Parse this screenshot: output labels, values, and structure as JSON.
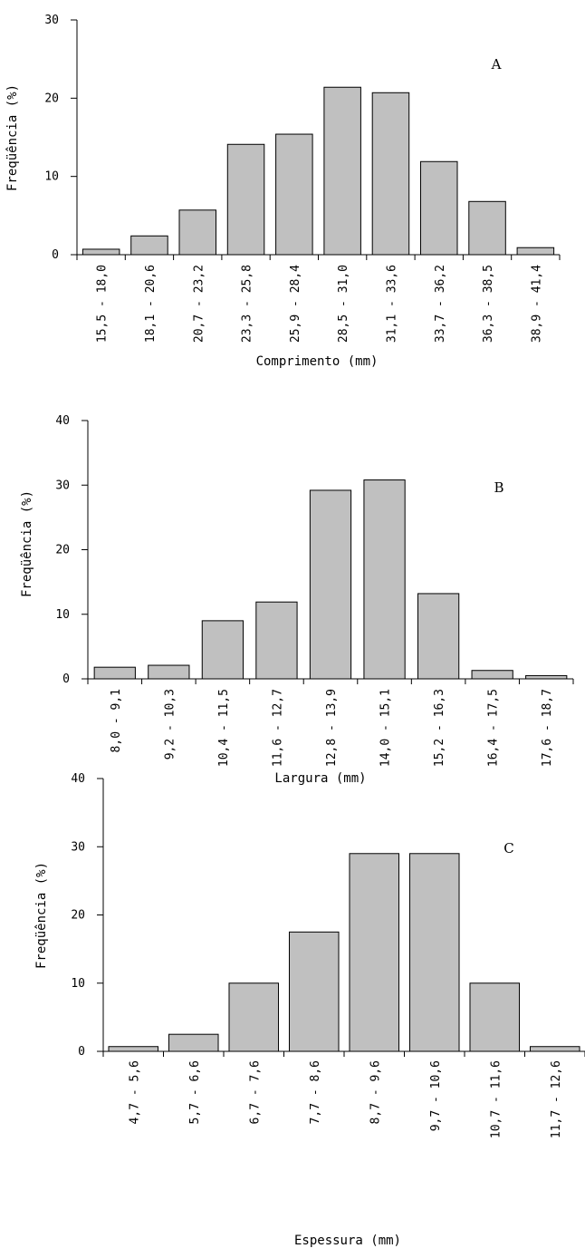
{
  "chart_data": [
    {
      "type": "bar",
      "panel_label": "A",
      "ylabel": "Freqüência (%)",
      "xlabel": "Comprimento (mm)",
      "ylim": [
        0,
        30
      ],
      "yticks": [
        0,
        10,
        20,
        30
      ],
      "categories": [
        "15,5 - 18,0",
        "18,1 - 20,6",
        "20,7 - 23,2",
        "23,3 - 25,8",
        "25,9 - 28,4",
        "28,5 - 31,0",
        "31,1 - 33,6",
        "33,7 - 36,2",
        "36,3 - 38,5",
        "38,9 - 41,4"
      ],
      "values": [
        0.7,
        2.4,
        5.7,
        14.1,
        15.4,
        21.4,
        20.7,
        11.9,
        6.8,
        0.9
      ]
    },
    {
      "type": "bar",
      "panel_label": "B",
      "ylabel": "Freqüência (%)",
      "xlabel": "Largura (mm)",
      "ylim": [
        0,
        40
      ],
      "yticks": [
        0,
        10,
        20,
        30,
        40
      ],
      "categories": [
        "8,0 - 9,1",
        "9,2 - 10,3",
        "10,4 - 11,5",
        "11,6 - 12,7",
        "12,8 - 13,9",
        "14,0 - 15,1",
        "15,2 - 16,3",
        "16,4 - 17,5",
        "17,6 - 18,7"
      ],
      "values": [
        1.8,
        2.1,
        9.0,
        11.9,
        29.2,
        30.8,
        13.2,
        1.3,
        0.5
      ]
    },
    {
      "type": "bar",
      "panel_label": "C",
      "ylabel": "Freqüência (%)",
      "xlabel": "Espessura (mm)",
      "ylim": [
        0,
        40
      ],
      "yticks": [
        0,
        10,
        20,
        30,
        40
      ],
      "categories": [
        "4,7 - 5,6",
        "5,7 - 6,6",
        "6,7 - 7,6",
        "7,7 - 8,6",
        "8,7 - 9,6",
        "9,7 - 10,6",
        "10,7 - 11,6",
        "11,7 - 12,6"
      ],
      "values": [
        0.7,
        2.5,
        10.0,
        17.5,
        29.0,
        29.0,
        10.0,
        0.7
      ]
    }
  ]
}
